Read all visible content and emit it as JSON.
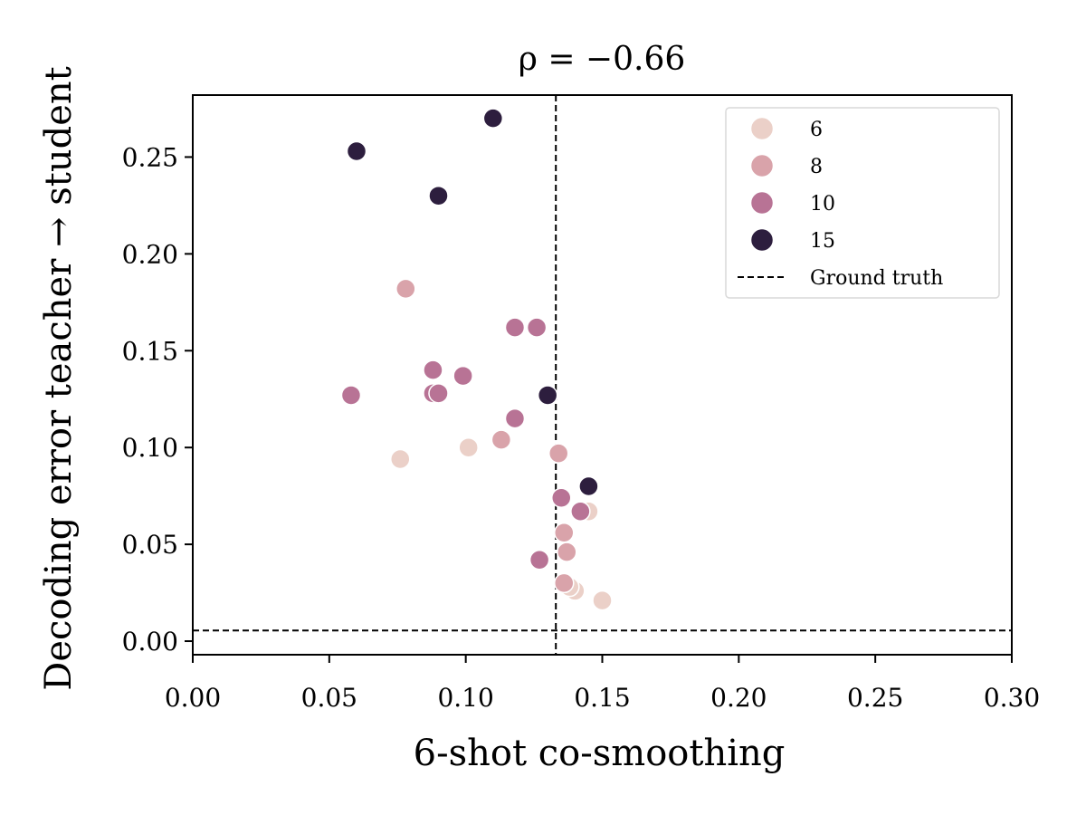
{
  "chart_data": {
    "type": "scatter",
    "title": "ρ = −0.66",
    "xlabel": "6-shot co-smoothing",
    "ylabel": "Decoding error teacher → student",
    "xlim": [
      0.0,
      0.3
    ],
    "ylim": [
      -0.007,
      0.282
    ],
    "xticks": [
      0.0,
      0.05,
      0.1,
      0.15,
      0.2,
      0.25,
      0.3
    ],
    "xtick_labels": [
      "0.00",
      "0.05",
      "0.10",
      "0.15",
      "0.20",
      "0.25",
      "0.30"
    ],
    "yticks": [
      0.0,
      0.05,
      0.1,
      0.15,
      0.2,
      0.25
    ],
    "ytick_labels": [
      "0.00",
      "0.05",
      "0.10",
      "0.15",
      "0.20",
      "0.25"
    ],
    "reference_lines": {
      "label": "Ground truth",
      "x": 0.133,
      "y": 0.0055
    },
    "legend": {
      "position": "top-right",
      "entries": [
        {
          "label": "6",
          "color": "#ebd0c8"
        },
        {
          "label": "8",
          "color": "#d9a3aa"
        },
        {
          "label": "10",
          "color": "#b87395"
        },
        {
          "label": "15",
          "color": "#2d1e3e"
        },
        {
          "label": "Ground truth",
          "style": "dashed-line",
          "color": "#000000"
        }
      ]
    },
    "series": [
      {
        "name": "6",
        "color": "#ebd0c8",
        "points": [
          {
            "x": 0.076,
            "y": 0.094
          },
          {
            "x": 0.101,
            "y": 0.1
          },
          {
            "x": 0.15,
            "y": 0.021
          },
          {
            "x": 0.14,
            "y": 0.026
          },
          {
            "x": 0.138,
            "y": 0.028
          },
          {
            "x": 0.145,
            "y": 0.067
          }
        ]
      },
      {
        "name": "8",
        "color": "#d9a3aa",
        "points": [
          {
            "x": 0.078,
            "y": 0.182
          },
          {
            "x": 0.113,
            "y": 0.104
          },
          {
            "x": 0.134,
            "y": 0.097
          },
          {
            "x": 0.136,
            "y": 0.056
          },
          {
            "x": 0.137,
            "y": 0.046
          },
          {
            "x": 0.136,
            "y": 0.03
          }
        ]
      },
      {
        "name": "10",
        "color": "#b87395",
        "points": [
          {
            "x": 0.058,
            "y": 0.127
          },
          {
            "x": 0.088,
            "y": 0.14
          },
          {
            "x": 0.088,
            "y": 0.128
          },
          {
            "x": 0.09,
            "y": 0.128
          },
          {
            "x": 0.099,
            "y": 0.137
          },
          {
            "x": 0.118,
            "y": 0.162
          },
          {
            "x": 0.126,
            "y": 0.162
          },
          {
            "x": 0.118,
            "y": 0.115
          },
          {
            "x": 0.135,
            "y": 0.074
          },
          {
            "x": 0.142,
            "y": 0.067
          },
          {
            "x": 0.127,
            "y": 0.042
          }
        ]
      },
      {
        "name": "15",
        "color": "#2d1e3e",
        "points": [
          {
            "x": 0.06,
            "y": 0.253
          },
          {
            "x": 0.11,
            "y": 0.27
          },
          {
            "x": 0.09,
            "y": 0.23
          },
          {
            "x": 0.13,
            "y": 0.127
          },
          {
            "x": 0.145,
            "y": 0.08
          }
        ]
      }
    ]
  }
}
